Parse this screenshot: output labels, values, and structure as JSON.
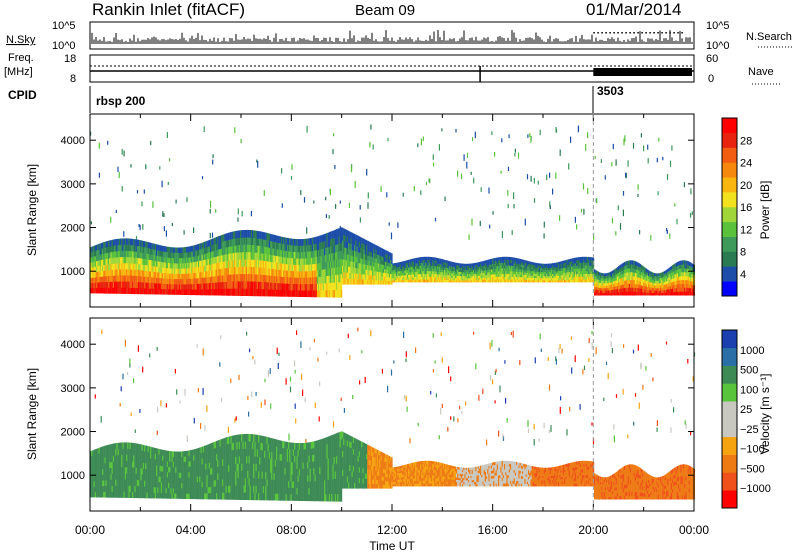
{
  "header": {
    "station": "Rankin Inlet (fitACF)",
    "beam": "Beam 09",
    "date": "01/Mar/2014"
  },
  "top_panels": {
    "nsky_label": "N.Sky",
    "nsky_ticks": [
      "10^5",
      "10^0"
    ],
    "nsearch_label": "N.Search",
    "nsearch_ticks": [
      "10^5",
      "10^0"
    ],
    "freq_label": "Freq.",
    "freq_unit": "[MHz]",
    "freq_ticks": [
      "18",
      "8"
    ],
    "nave_label": "Nave",
    "nave_ticks": [
      "60",
      "0"
    ],
    "cpid_label": "CPID",
    "cpid_segments": [
      {
        "label": "rbsp 200",
        "start_hour": 0
      },
      {
        "label": "3503",
        "start_hour": 20.0
      }
    ]
  },
  "colorbars": {
    "power": {
      "label": "Power [dB]",
      "ticks": [
        "28",
        "24",
        "20",
        "16",
        "12",
        "8",
        "4"
      ],
      "colors": [
        "#0000ff",
        "#1c4da8",
        "#2a7a52",
        "#3d9a5a",
        "#59c23a",
        "#a0d638",
        "#f2e21e",
        "#f9b60e",
        "#f6890d",
        "#f25d12",
        "#e8230e",
        "#ff0000"
      ]
    },
    "velocity": {
      "label": "Velocity [m s⁻¹]",
      "ticks": [
        "1000",
        "500",
        "100",
        "25",
        "−25",
        "−100",
        "−500",
        "−1000"
      ],
      "colors": [
        "#ff0000",
        "#f0501a",
        "#ee7a14",
        "#f5a311",
        "#c8c8c0",
        "#c8c8c0",
        "#58c43c",
        "#3d8a55",
        "#2a6fa6",
        "#1c3fb0"
      ]
    }
  },
  "chart_data": [
    {
      "type": "heatmap",
      "name": "power",
      "ylabel": "Slant Range [km]",
      "xlabel": "",
      "ylim": [
        180,
        4600
      ],
      "xlim_hours": [
        0,
        24
      ],
      "y_ticks": [
        1000,
        2000,
        3000,
        4000
      ],
      "x_ticks": [
        "00:00",
        "04:00",
        "08:00",
        "12:00",
        "16:00",
        "20:00",
        "00:00"
      ]
    },
    {
      "type": "heatmap",
      "name": "velocity",
      "ylabel": "Slant Range [km]",
      "xlabel": "Time UT",
      "ylim": [
        180,
        4600
      ],
      "xlim_hours": [
        0,
        24
      ],
      "y_ticks": [
        1000,
        2000,
        3000,
        4000
      ],
      "x_ticks": [
        "00:00",
        "04:00",
        "08:00",
        "12:00",
        "16:00",
        "20:00",
        "00:00"
      ]
    }
  ]
}
